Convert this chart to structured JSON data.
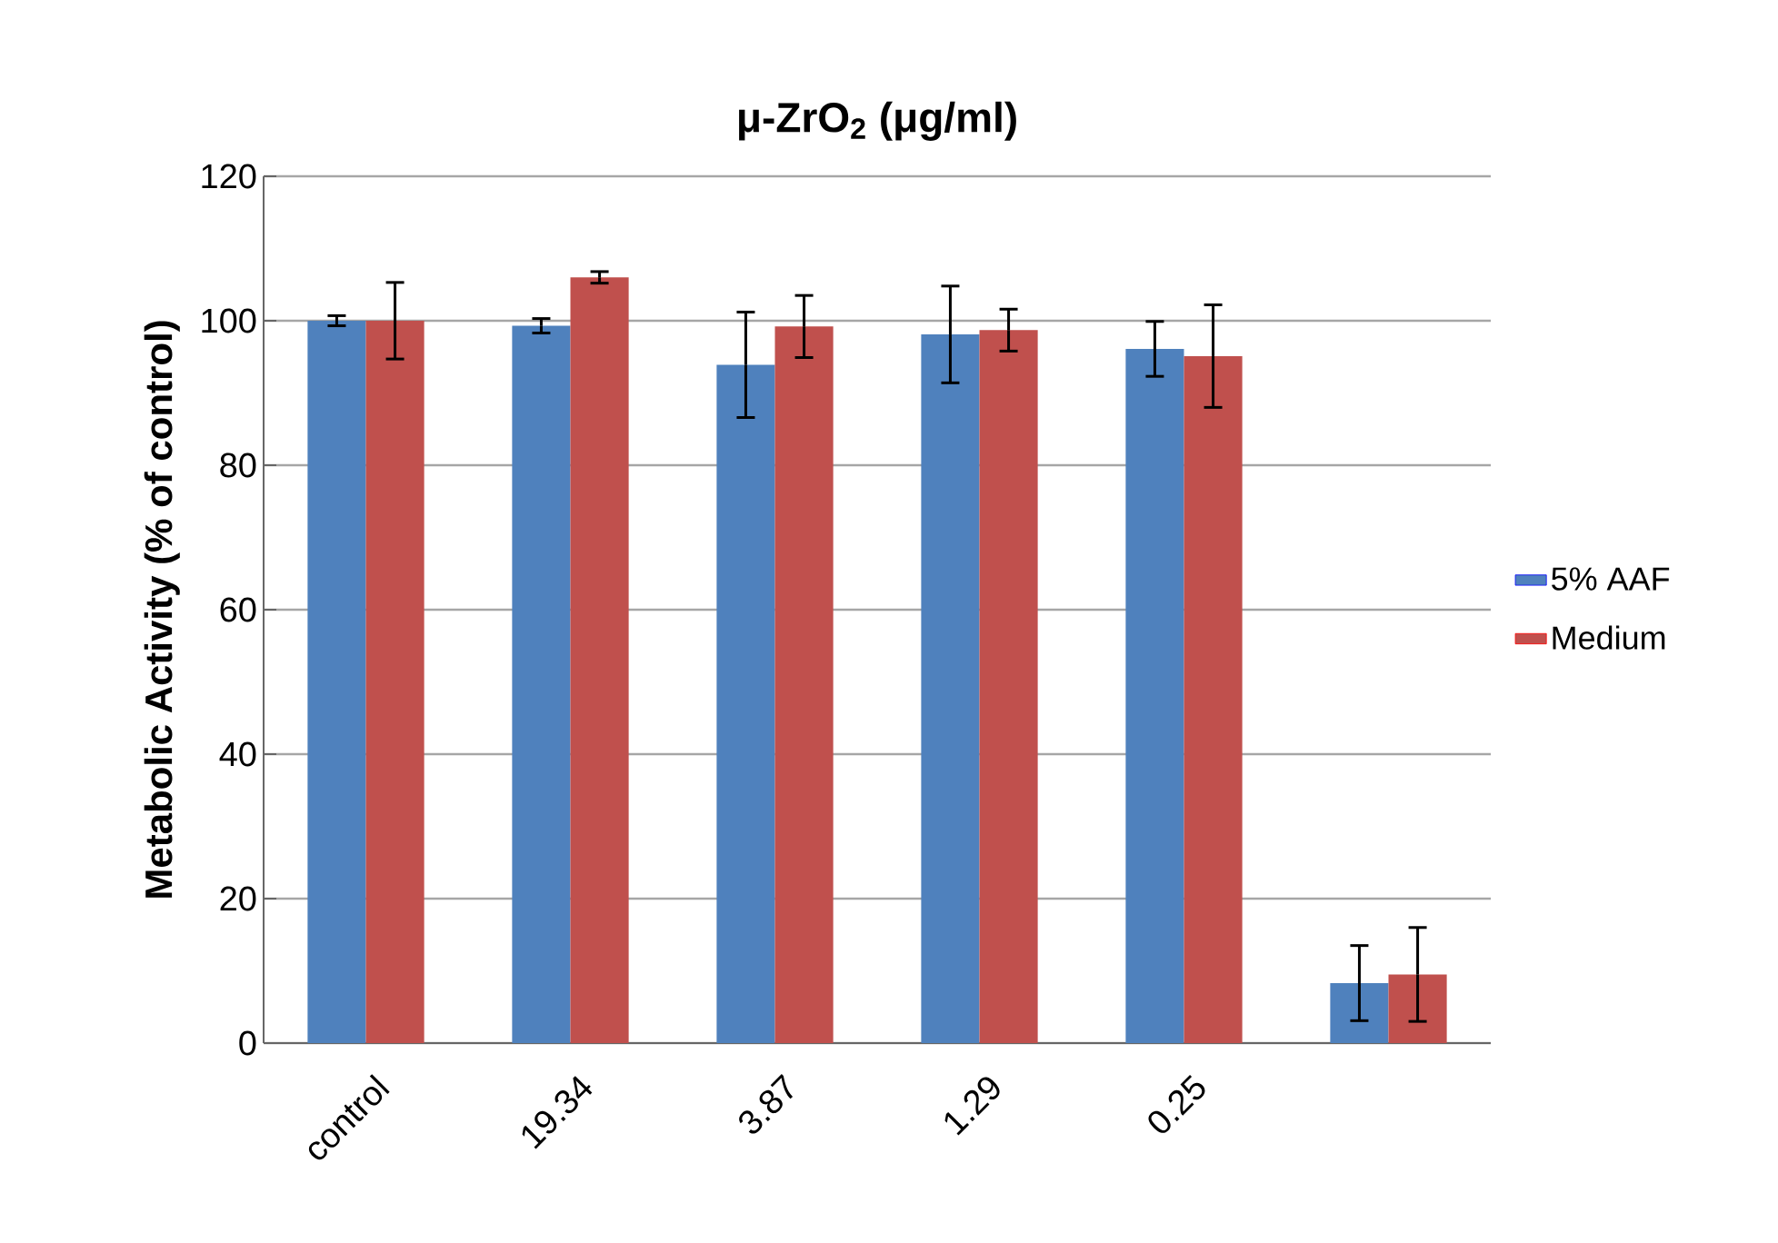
{
  "chart_data": {
    "type": "bar",
    "title": "μ-ZrO$_{2}$ (μg/ml)",
    "ylabel": "Metabolic Activity (% of control)",
    "categories": [
      "control",
      "19.34",
      "3.87",
      "1.29",
      "0.25",
      null
    ],
    "series": [
      {
        "name": "5% AAF",
        "color": "#4f81bd",
        "values": [
          100,
          99.3,
          93.9,
          98.1,
          96.1,
          8.3
        ],
        "errors": [
          0.7,
          1.0,
          7.3,
          6.7,
          3.8,
          5.2
        ]
      },
      {
        "name": "Medium",
        "color": "#c0504d",
        "values": [
          100,
          106.0,
          99.2,
          98.7,
          95.1,
          9.5
        ],
        "errors": [
          5.3,
          0.8,
          4.3,
          2.9,
          7.1,
          6.5
        ]
      }
    ],
    "ylim": [
      0,
      120
    ],
    "yticks": [
      0,
      20,
      40,
      60,
      80,
      100,
      120
    ],
    "grid": "y",
    "legend": "right"
  }
}
